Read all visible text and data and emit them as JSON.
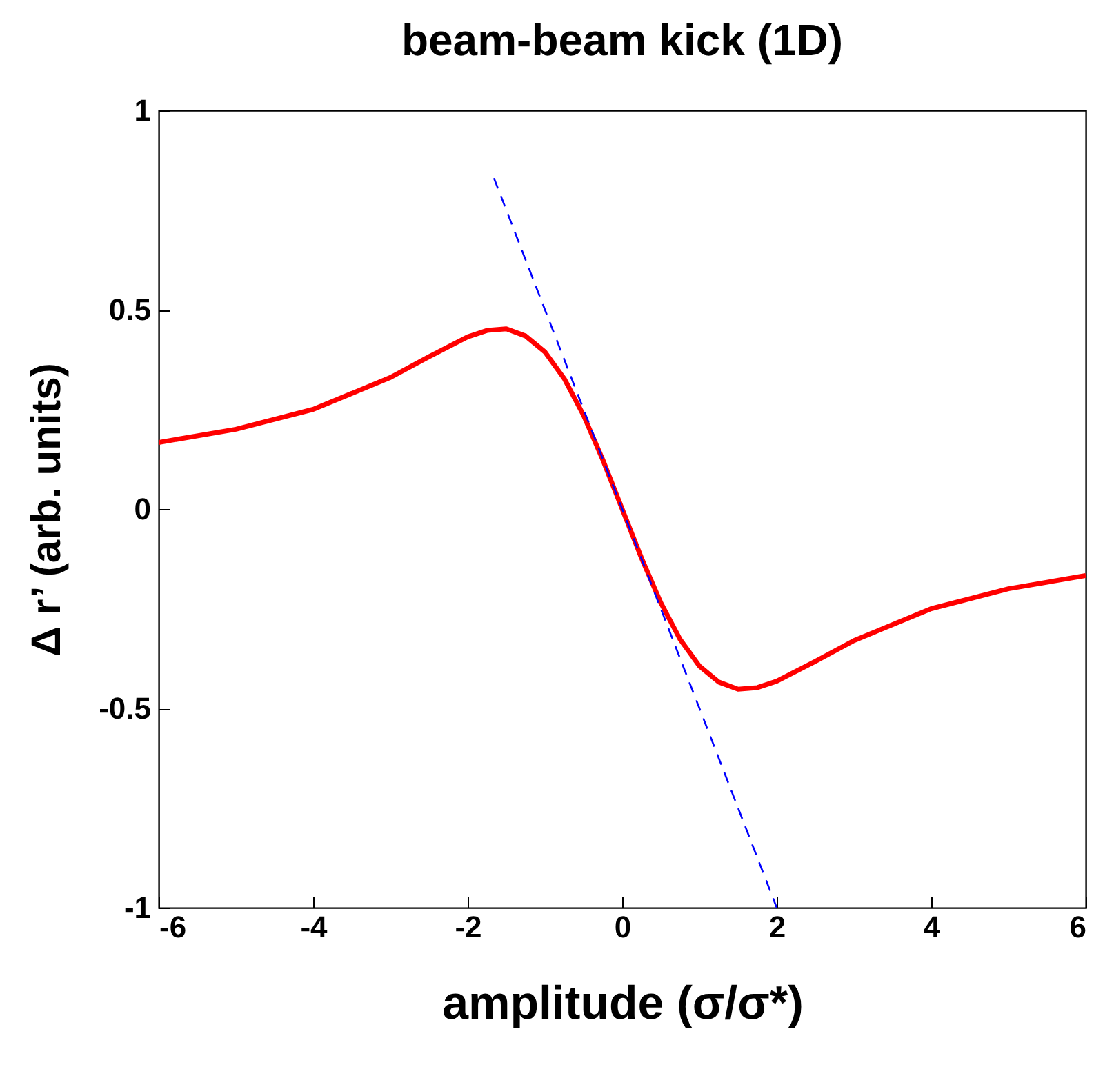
{
  "chart_data": {
    "type": "line",
    "title": "beam-beam kick (1D)",
    "xlabel": "amplitude  (σ/σ*)",
    "ylabel": "Δ  r’  (arb. units)",
    "xlim": [
      -6,
      6
    ],
    "xticks": [
      -6,
      -4,
      -2,
      0,
      2,
      4,
      6
    ],
    "ylim": [
      -1,
      1
    ],
    "yticks": [
      -1,
      {
        "value": -0.5,
        "label": "-0.5"
      },
      0,
      0.5,
      1
    ],
    "grid": false,
    "series": [
      {
        "color": "#ff0000",
        "line_style": "solid",
        "x": [
          -6,
          -5,
          -4,
          -3,
          -2.5,
          -2,
          -1.75,
          -1.5,
          -1.25,
          -1,
          -0.75,
          -0.5,
          -0.25,
          0,
          0.25,
          0.5,
          0.75,
          1,
          1.25,
          1.5,
          1.75,
          2,
          2.5,
          3,
          4,
          5,
          6
        ],
        "values": [
          0.167,
          0.2,
          0.25,
          0.33,
          0.382,
          0.432,
          0.448,
          0.452,
          0.434,
          0.394,
          0.327,
          0.235,
          0.123,
          0,
          -0.123,
          -0.235,
          -0.327,
          -0.394,
          -0.434,
          -0.452,
          -0.448,
          -0.432,
          -0.382,
          -0.33,
          -0.25,
          -0.2,
          -0.167
        ]
      },
      {
        "color": "#0000ff",
        "line_style": "dashed",
        "x": [
          -1.66,
          2
        ],
        "values": [
          0.83,
          -1
        ]
      }
    ]
  }
}
